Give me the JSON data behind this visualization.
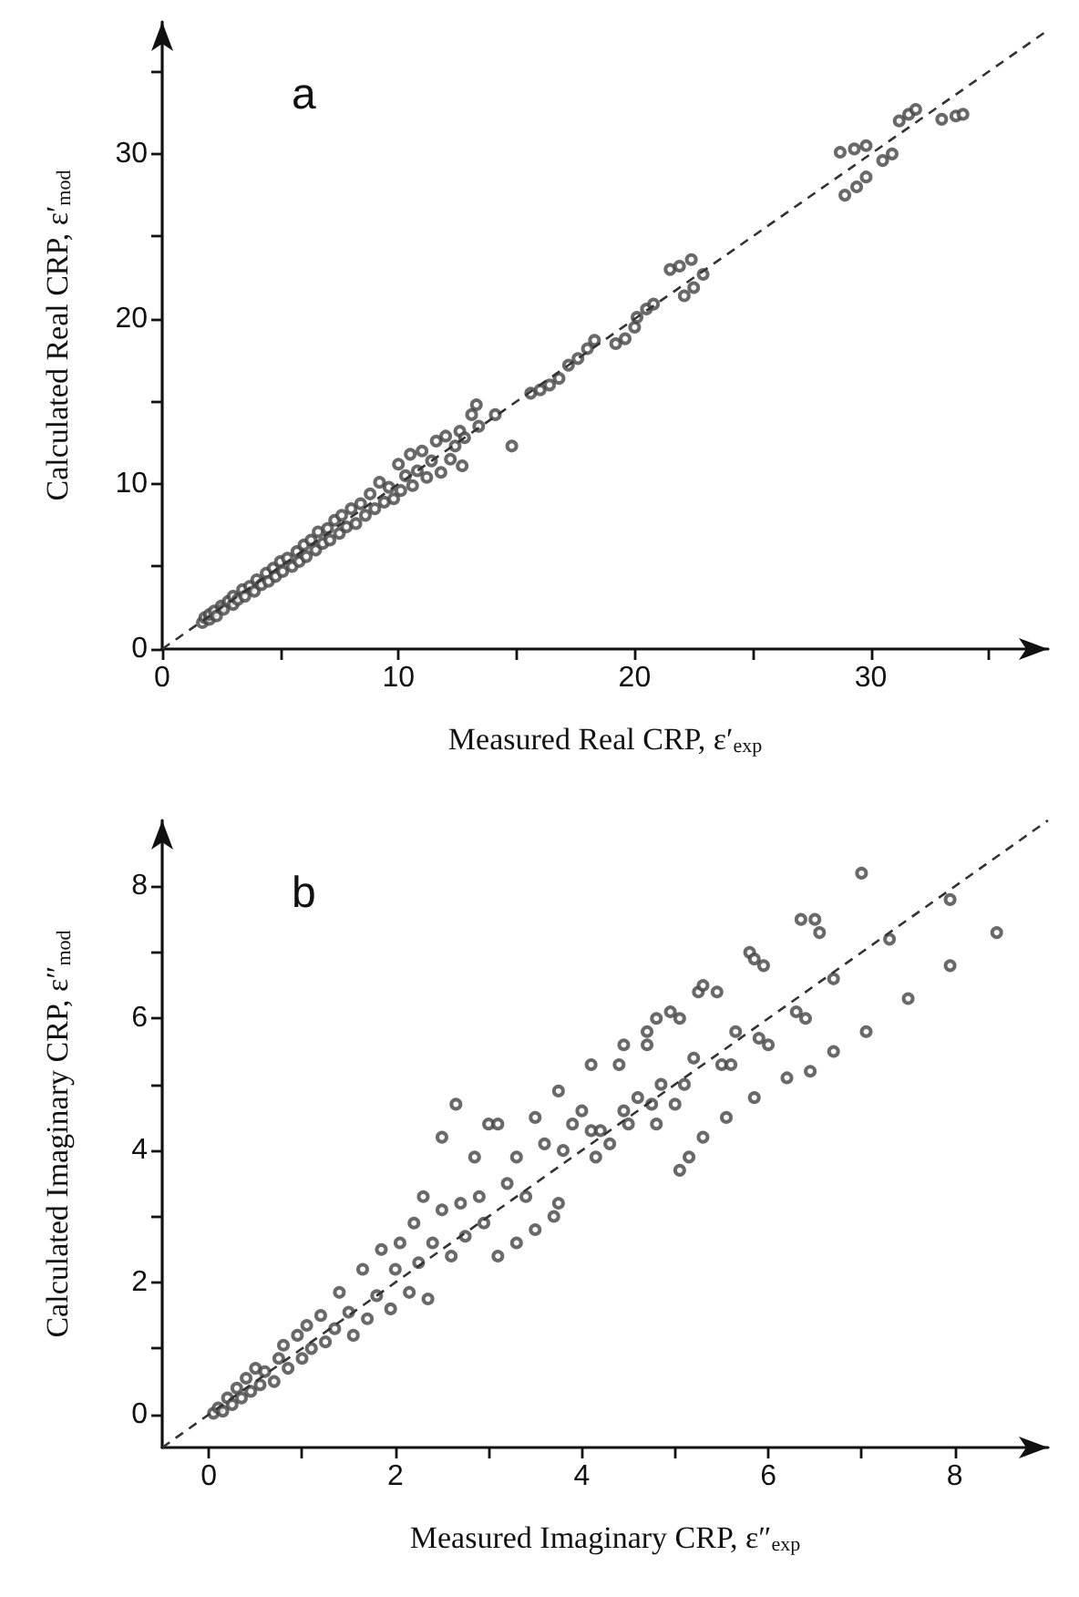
{
  "chart_data": [
    {
      "type": "scatter",
      "title": "a",
      "xlabel": "Measured Real CRP, ε′$_{exp}$",
      "ylabel": "Calculated Real CRP, ε′$_{mod}$",
      "xlim": [
        0,
        37.5
      ],
      "ylim": [
        0,
        38
      ],
      "marker": "circle",
      "xticks": [
        0,
        {
          "value": 5,
          "label": null
        },
        10,
        {
          "value": 15,
          "label": null
        },
        20,
        {
          "value": 25,
          "label": null
        },
        30,
        {
          "value": 35,
          "label": null
        }
      ],
      "yticks": [
        0,
        {
          "value": 5,
          "label": null
        },
        10,
        {
          "value": 15,
          "label": null
        },
        20,
        {
          "value": 25,
          "label": null
        },
        30,
        {
          "value": 35,
          "label": null
        }
      ],
      "series": [
        {
          "color": "#444444",
          "x": [
            1.7,
            1.8,
            2,
            2,
            2.2,
            2.3,
            2.5,
            2.6,
            2.8,
            3,
            3,
            3.2,
            3.4,
            3.5,
            3.7,
            3.9,
            4,
            4.2,
            4.4,
            4.5,
            4.7,
            4.8,
            5,
            5.1,
            5.3,
            5.5,
            5.7,
            5.8,
            6,
            6.1,
            6.3,
            6.5,
            6.6,
            6.8,
            7,
            7.1,
            7.3,
            7.5,
            7.6,
            7.8,
            8,
            8.2,
            8.4,
            8.6,
            8.8,
            9,
            9.2,
            9.4,
            9.6,
            9.8,
            10,
            10.1,
            10.3,
            10.5,
            10.6,
            10.8,
            11,
            11.2,
            11.4,
            11.6,
            11.8,
            12,
            12.2,
            12.4,
            12.6,
            12.7,
            12.8,
            13.1,
            13.3,
            13.4,
            14.1,
            14.8,
            15.6,
            16,
            16.4,
            16.8,
            17.2,
            17.6,
            18,
            18.3,
            19.2,
            19.6,
            20,
            20.1,
            20.5,
            20.8,
            21.5,
            21.9,
            22.4,
            22.1,
            22.5,
            22.9,
            28.7,
            29.3,
            29.8,
            28.9,
            29.4,
            29.8,
            30.5,
            30.9,
            31.2,
            31.6,
            31.9,
            33,
            33.6,
            33.9
          ],
          "values": [
            1.6,
            1.9,
            1.8,
            2.1,
            2.3,
            2,
            2.6,
            2.4,
            2.9,
            2.7,
            3.2,
            3,
            3.6,
            3.2,
            3.8,
            3.5,
            4.2,
            3.9,
            4.6,
            4.1,
            4.9,
            4.4,
            5.3,
            4.7,
            5.5,
            5,
            5.9,
            5.3,
            6.3,
            5.6,
            6.6,
            6,
            7.1,
            6.4,
            7.3,
            6.6,
            7.8,
            7,
            8.1,
            7.4,
            8.5,
            7.6,
            8.8,
            8.1,
            9.4,
            8.5,
            10.1,
            8.9,
            9.8,
            9.1,
            11.2,
            9.6,
            10.5,
            11.8,
            9.9,
            10.8,
            12,
            10.4,
            11.4,
            12.6,
            10.7,
            12.9,
            11.5,
            12.3,
            13.2,
            11.1,
            12.8,
            14.2,
            14.8,
            13.5,
            14.2,
            12.3,
            15.5,
            15.7,
            16,
            16.4,
            17.2,
            17.6,
            18.2,
            18.7,
            18.5,
            18.8,
            19.5,
            20.1,
            20.6,
            20.9,
            23,
            23.2,
            23.6,
            21.4,
            21.9,
            22.7,
            30.1,
            30.3,
            30.5,
            27.5,
            28,
            28.6,
            29.6,
            30,
            32,
            32.4,
            32.7,
            32.1,
            32.3,
            32.4
          ]
        },
        {
          "type": "line",
          "color": "#333333",
          "line_style": "dashed",
          "marker": "none",
          "x": [
            0,
            37.5
          ],
          "values": [
            0,
            37.5
          ]
        }
      ]
    },
    {
      "type": "scatter",
      "title": "b",
      "xlabel": "Measured Imaginary CRP, ε″$_{exp}$",
      "ylabel": "Calculated Imaginary CRP, ε″$_{mod}$",
      "xlim": [
        -0.5,
        9
      ],
      "ylim": [
        -0.5,
        9
      ],
      "marker": "circle",
      "xticks": [
        0,
        {
          "value": 1,
          "label": null
        },
        2,
        {
          "value": 3,
          "label": null
        },
        4,
        {
          "value": 5,
          "label": null
        },
        6,
        {
          "value": 7,
          "label": null
        },
        8
      ],
      "yticks": [
        0,
        {
          "value": 1,
          "label": null
        },
        2,
        {
          "value": 3,
          "label": null
        },
        4,
        {
          "value": 5,
          "label": null
        },
        6,
        {
          "value": 7,
          "label": null
        },
        8
      ],
      "series": [
        {
          "color": "#444444",
          "x": [
            0.05,
            0.1,
            0.15,
            0.2,
            0.25,
            0.3,
            0.35,
            0.4,
            0.45,
            0.5,
            0.55,
            0.6,
            0.7,
            0.75,
            0.8,
            0.85,
            0.95,
            1,
            1.05,
            1.1,
            1.2,
            1.25,
            1.35,
            1.4,
            1.5,
            1.55,
            1.65,
            1.7,
            1.8,
            1.85,
            1.95,
            2,
            2.05,
            2.15,
            2.2,
            2.25,
            2.3,
            2.35,
            2.4,
            2.5,
            2.5,
            2.6,
            2.65,
            2.7,
            2.75,
            2.85,
            2.9,
            2.95,
            3,
            3.1,
            3.1,
            3.2,
            3.3,
            3.3,
            3.4,
            3.5,
            3.5,
            3.6,
            3.7,
            3.75,
            3.75,
            3.8,
            3.9,
            4,
            4.1,
            4.1,
            4.15,
            4.2,
            4.3,
            4.4,
            4.45,
            4.45,
            4.5,
            4.6,
            4.7,
            4.7,
            4.75,
            4.8,
            4.8,
            4.85,
            4.95,
            5,
            5.05,
            5.05,
            5.1,
            5.15,
            5.2,
            5.25,
            5.3,
            5.3,
            5.45,
            5.5,
            5.55,
            5.6,
            5.65,
            5.8,
            5.85,
            5.85,
            5.9,
            5.95,
            6,
            6.2,
            6.3,
            6.35,
            6.4,
            6.45,
            6.5,
            6.55,
            6.7,
            6.7,
            7,
            7.05,
            7.3,
            7.5,
            7.95,
            7.95,
            8.45
          ],
          "values": [
            0.02,
            0.1,
            0.05,
            0.25,
            0.15,
            0.4,
            0.25,
            0.55,
            0.35,
            0.7,
            0.45,
            0.65,
            0.5,
            0.85,
            1.05,
            0.7,
            1.2,
            0.85,
            1.35,
            1,
            1.5,
            1.1,
            1.3,
            1.85,
            1.55,
            1.2,
            2.2,
            1.45,
            1.8,
            2.5,
            1.6,
            2.2,
            2.6,
            1.85,
            2.9,
            2.3,
            3.3,
            1.75,
            2.6,
            3.1,
            4.2,
            2.4,
            4.7,
            3.2,
            2.7,
            3.9,
            3.3,
            2.9,
            4.4,
            2.4,
            4.4,
            3.5,
            3.9,
            2.6,
            3.3,
            2.8,
            4.5,
            4.1,
            3,
            3.2,
            4.9,
            4,
            4.4,
            4.6,
            4.3,
            5.3,
            3.9,
            4.3,
            4.1,
            5.3,
            5.6,
            4.6,
            4.4,
            4.8,
            5.6,
            5.8,
            4.7,
            6,
            4.4,
            5,
            6.1,
            4.7,
            3.7,
            6,
            5,
            3.9,
            5.4,
            6.4,
            6.5,
            4.2,
            6.4,
            5.3,
            4.5,
            5.3,
            5.8,
            7,
            6.9,
            4.8,
            5.7,
            6.8,
            5.6,
            5.1,
            6.1,
            7.5,
            6,
            5.2,
            7.5,
            7.3,
            5.5,
            6.6,
            8.2,
            5.8,
            7.2,
            6.3,
            6.8,
            7.8,
            7.3
          ]
        },
        {
          "type": "line",
          "color": "#333333",
          "line_style": "dashed",
          "marker": "none",
          "x": [
            -0.5,
            9
          ],
          "values": [
            -0.5,
            9
          ]
        }
      ]
    }
  ]
}
